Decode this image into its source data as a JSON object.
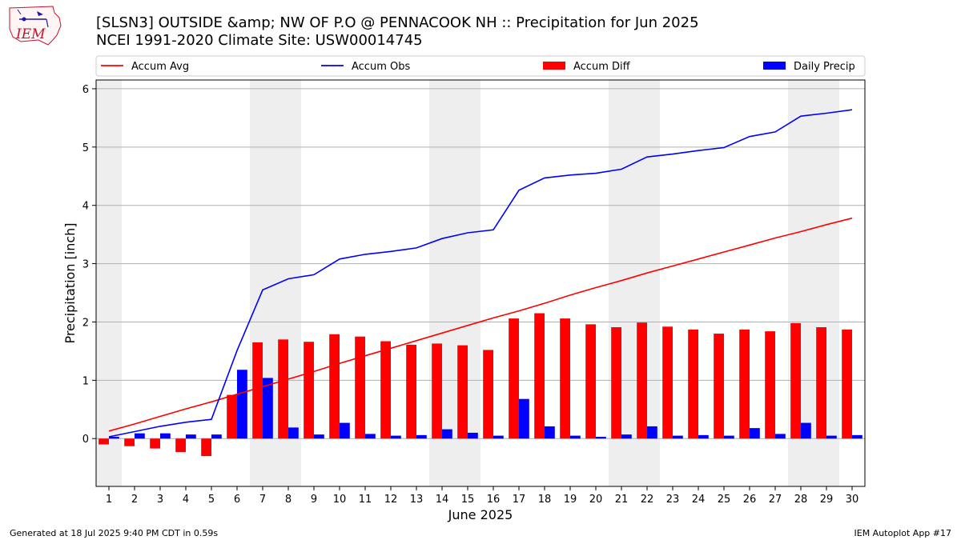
{
  "header": {
    "title_line1": "[SLSN3] OUTSIDE &amp; NW OF P.O @ PENNACOOK  NH :: Precipitation for Jun 2025",
    "title_line2": "NCEI 1991-2020 Climate Site: USW00014745"
  },
  "logo": {
    "text": "IEM",
    "color": "#c8102e"
  },
  "footer": {
    "left": "Generated at 18 Jul 2025 9:40 PM CDT in 0.59s",
    "right": "IEM Autoplot App #17"
  },
  "chart_data": {
    "type": "bar",
    "xlabel": "June 2025",
    "ylabel": "Precipitation [inch]",
    "ylim": [
      -0.82,
      6.15
    ],
    "yticks": [
      0,
      1,
      2,
      3,
      4,
      5,
      6
    ],
    "grid": "horizontal",
    "weekend_shading_days": [
      1,
      7,
      8,
      14,
      15,
      21,
      22,
      28,
      29
    ],
    "categories": [
      "1",
      "2",
      "3",
      "4",
      "5",
      "6",
      "7",
      "8",
      "9",
      "10",
      "11",
      "12",
      "13",
      "14",
      "15",
      "16",
      "17",
      "18",
      "19",
      "20",
      "21",
      "22",
      "23",
      "24",
      "25",
      "26",
      "27",
      "28",
      "29",
      "30"
    ],
    "legend_position": "top",
    "series": [
      {
        "name": "Accum Avg",
        "kind": "line",
        "color": "#ff0000",
        "values": [
          0.13,
          0.25,
          0.38,
          0.51,
          0.63,
          0.76,
          0.89,
          1.02,
          1.15,
          1.29,
          1.42,
          1.55,
          1.68,
          1.81,
          1.94,
          2.07,
          2.19,
          2.32,
          2.46,
          2.59,
          2.71,
          2.84,
          2.96,
          3.08,
          3.2,
          3.32,
          3.44,
          3.55,
          3.67,
          3.78
        ]
      },
      {
        "name": "Accum Obs",
        "kind": "line",
        "color": "#0000ff",
        "values": [
          0.03,
          0.12,
          0.21,
          0.28,
          0.33,
          1.51,
          2.55,
          2.74,
          2.81,
          3.08,
          3.16,
          3.21,
          3.27,
          3.43,
          3.53,
          3.58,
          4.26,
          4.47,
          4.52,
          4.55,
          4.62,
          4.83,
          4.88,
          4.94,
          4.99,
          5.18,
          5.26,
          5.53,
          5.58,
          5.64
        ]
      },
      {
        "name": "Accum Diff",
        "kind": "bar",
        "color": "#ff0000",
        "values": [
          -0.1,
          -0.13,
          -0.17,
          -0.23,
          -0.3,
          0.75,
          1.65,
          1.7,
          1.66,
          1.79,
          1.75,
          1.67,
          1.61,
          1.63,
          1.6,
          1.52,
          2.06,
          2.15,
          2.06,
          1.96,
          1.91,
          1.99,
          1.92,
          1.87,
          1.8,
          1.87,
          1.84,
          1.98,
          1.91,
          1.87
        ]
      },
      {
        "name": "Daily Precip",
        "kind": "bar",
        "color": "#0000ff",
        "values": [
          0.03,
          0.09,
          0.09,
          0.07,
          0.07,
          1.18,
          1.04,
          0.19,
          0.07,
          0.27,
          0.08,
          0.05,
          0.06,
          0.16,
          0.1,
          0.05,
          0.68,
          0.21,
          0.05,
          0.03,
          0.07,
          0.21,
          0.05,
          0.06,
          0.05,
          0.18,
          0.08,
          0.27,
          0.05,
          0.06
        ]
      }
    ]
  }
}
